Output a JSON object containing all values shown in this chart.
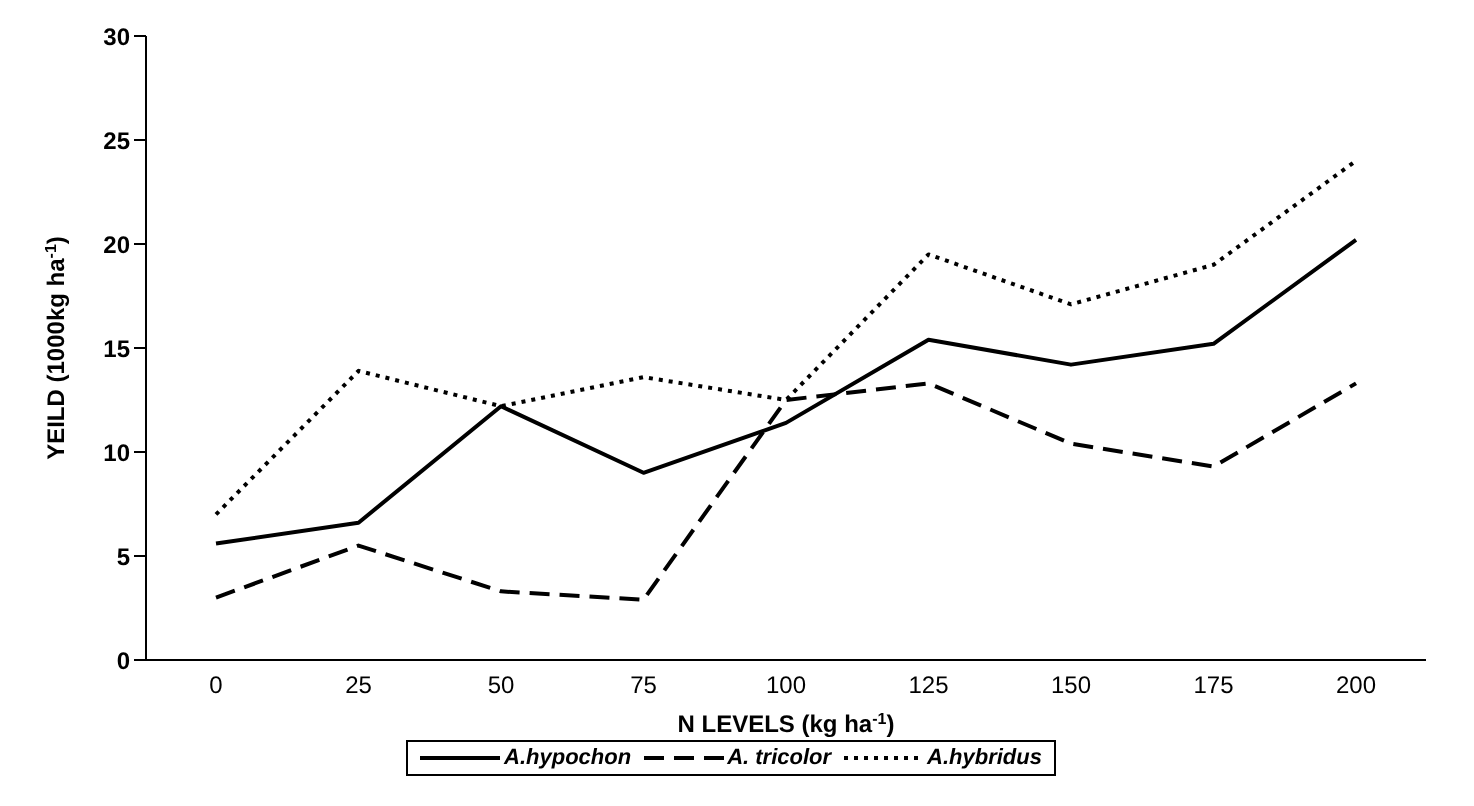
{
  "chart_data": {
    "type": "line",
    "xlabel": "N LEVELS (kg ha$^{-1}$)",
    "ylabel": "YEILD (1000kg ha$^{-1}$)",
    "categories": [
      "0",
      "25",
      "50",
      "75",
      "100",
      "125",
      "150",
      "175",
      "200"
    ],
    "series": [
      {
        "name": "A.hypochon",
        "color": "#000000",
        "line_style": "solid",
        "values": [
          5.6,
          6.6,
          12.2,
          9.0,
          11.4,
          15.4,
          14.2,
          15.2,
          20.2
        ]
      },
      {
        "name": "A. tricolor",
        "color": "#000000",
        "line_style": "dashed",
        "values": [
          3.0,
          5.5,
          3.3,
          2.9,
          12.5,
          13.3,
          10.4,
          9.3,
          13.3
        ]
      },
      {
        "name": "A.hybridus",
        "color": "#000000",
        "line_style": "dotted",
        "values": [
          7.0,
          13.9,
          12.2,
          13.6,
          12.5,
          19.5,
          17.1,
          19.0,
          24.0
        ]
      }
    ],
    "ylim": [
      0,
      30
    ],
    "yticks": [
      0,
      5,
      10,
      15,
      20,
      25,
      30
    ],
    "grid": false,
    "legend": "bottom",
    "marker": "none"
  }
}
